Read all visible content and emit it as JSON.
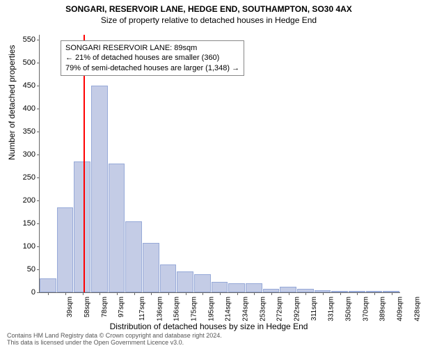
{
  "header": {
    "title": "SONGARI, RESERVOIR LANE, HEDGE END, SOUTHAMPTON, SO30 4AX",
    "subtitle": "Size of property relative to detached houses in Hedge End"
  },
  "chart": {
    "type": "histogram",
    "ylabel": "Number of detached properties",
    "xlabel": "Distribution of detached houses by size in Hedge End",
    "ylim_max": 560,
    "yticks": [
      0,
      50,
      100,
      150,
      200,
      250,
      300,
      350,
      400,
      450,
      500,
      550
    ],
    "xcategories": [
      "39sqm",
      "58sqm",
      "78sqm",
      "97sqm",
      "117sqm",
      "136sqm",
      "156sqm",
      "175sqm",
      "195sqm",
      "214sqm",
      "234sqm",
      "253sqm",
      "272sqm",
      "292sqm",
      "311sqm",
      "331sqm",
      "350sqm",
      "370sqm",
      "389sqm",
      "409sqm",
      "428sqm"
    ],
    "values": [
      30,
      185,
      285,
      450,
      280,
      155,
      108,
      60,
      45,
      40,
      22,
      20,
      20,
      8,
      12,
      8,
      4,
      0,
      2,
      0,
      2
    ],
    "bar_fill": "#c4cce6",
    "bar_stroke": "#96a9d8",
    "background_color": "#ffffff",
    "marker_value_sqm": 89,
    "marker_color": "#ff0000",
    "marker_width": 2
  },
  "infobox": {
    "line1": "SONGARI RESERVOIR LANE: 89sqm",
    "line2": "← 21% of detached houses are smaller (360)",
    "line3": "79% of semi-detached houses are larger (1,348) →",
    "border_color": "#888888",
    "fontsize": 11
  },
  "footer": {
    "line1": "Contains HM Land Registry data © Crown copyright and database right 2024.",
    "line2": "This data is licensed under the Open Government Licence v3.0."
  }
}
